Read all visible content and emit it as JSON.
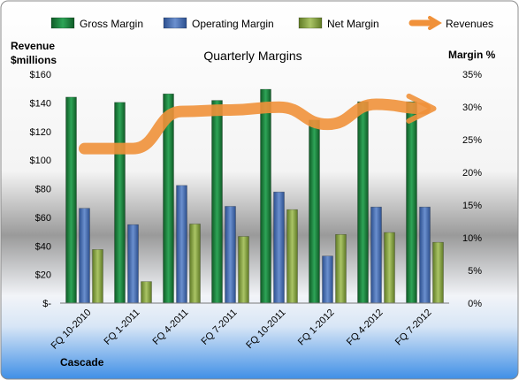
{
  "chart_data": {
    "type": "bar",
    "title": "Quarterly Margins",
    "left_axis_label_line1": "Revenue",
    "left_axis_label_line2": "$millions",
    "right_axis_label": "Margin %",
    "company": "Cascade",
    "categories": [
      "FQ 10-2010",
      "FQ 1-2011",
      "FQ 4-2011",
      "FQ 7-2011",
      "FQ 10-2011",
      "FQ 1-2012",
      "FQ 4-2012",
      "FQ 7-2012"
    ],
    "left_ticks": [
      "$-",
      "$20",
      "$40",
      "$60",
      "$80",
      "$100",
      "$120",
      "$140",
      "$160"
    ],
    "right_ticks": [
      "0%",
      "5%",
      "10%",
      "15%",
      "20%",
      "25%",
      "30%",
      "35%"
    ],
    "ylim_left": [
      0,
      160
    ],
    "ylim_right": [
      0,
      35
    ],
    "series": [
      {
        "name": "Gross Margin",
        "axis": "right",
        "color": "#1e7a3c",
        "values": [
          31.5,
          30.7,
          32.0,
          31.0,
          32.7,
          28.0,
          30.8,
          30.8
        ]
      },
      {
        "name": "Operating Margin",
        "axis": "right",
        "color": "#4a6fb0",
        "values": [
          14.5,
          12.0,
          18.0,
          14.8,
          17.0,
          7.2,
          14.7,
          14.7
        ]
      },
      {
        "name": "Net Margin",
        "axis": "right",
        "color": "#8ea84a",
        "values": [
          8.2,
          3.3,
          12.1,
          10.2,
          14.3,
          10.5,
          10.8,
          9.3
        ]
      },
      {
        "name": "Revenues",
        "axis": "left",
        "type": "line",
        "color": "#f0913a",
        "values": [
          108,
          108,
          134,
          135,
          137,
          125,
          139,
          136
        ]
      }
    ]
  }
}
